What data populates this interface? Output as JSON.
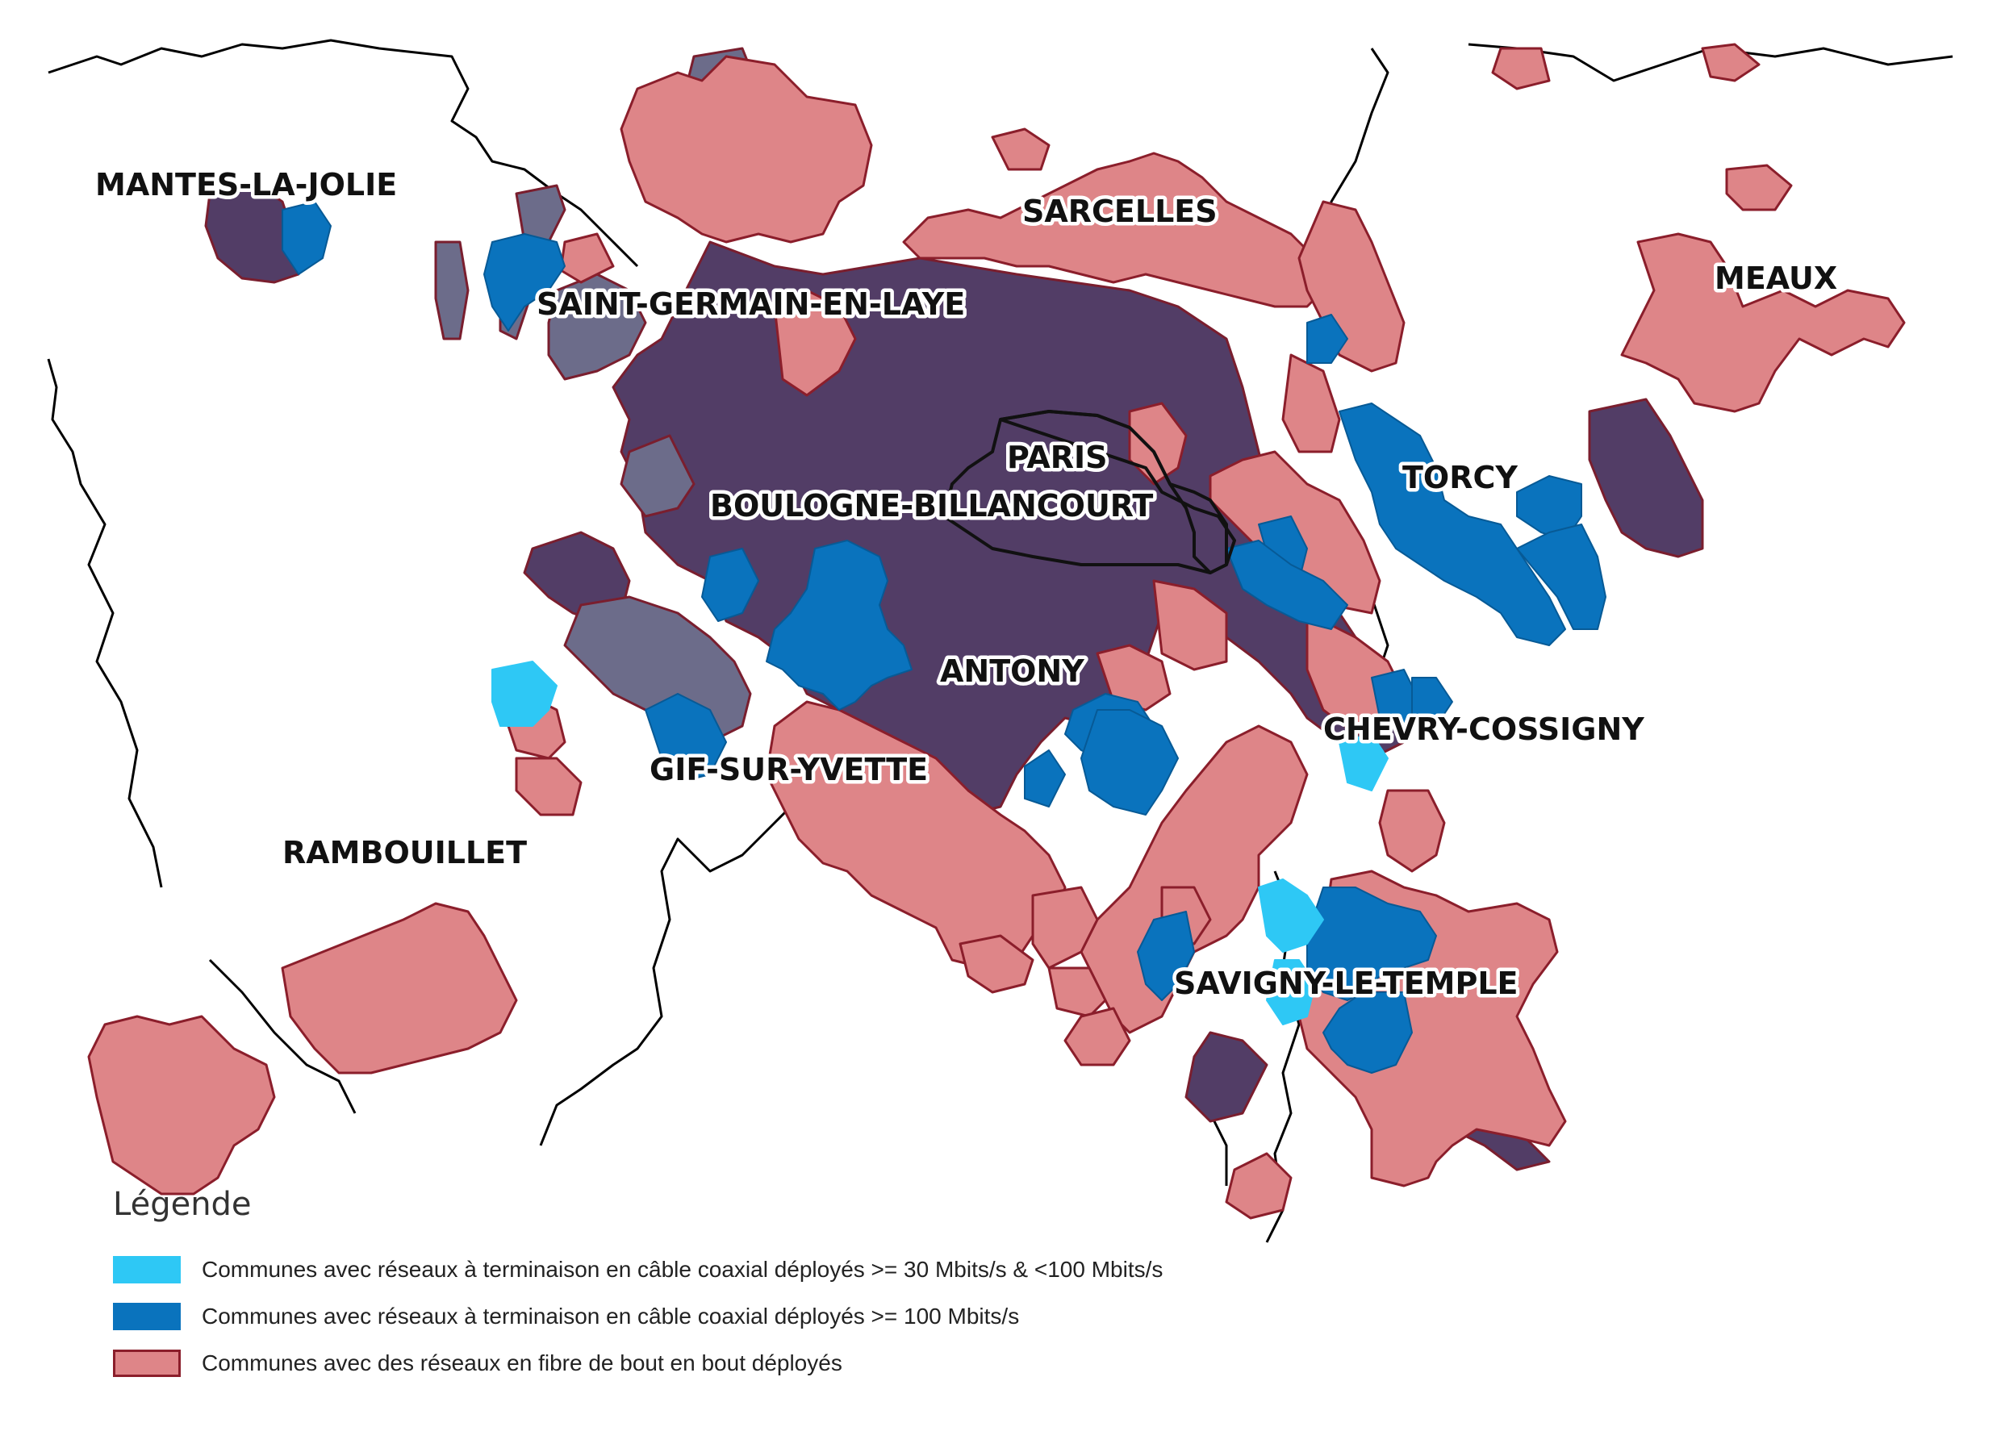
{
  "colors": {
    "coax_30_100": "#2ec8f5",
    "coax_100": "#0a73bd",
    "fibre": "#de8588",
    "fibre_border": "#8b1e2b",
    "overlap_dark": "#523d66",
    "overlap_grey": "#6c6c8a",
    "borders": "#000000"
  },
  "labels": [
    "MANTES-LA-JOLIE",
    "SARCELLES",
    "MEAUX",
    "SAINT-GERMAIN-EN-LAYE",
    "PARIS",
    "TORCY",
    "BOULOGNE-BILLANCOURT",
    "ANTONY",
    "CHEVRY-COSSIGNY",
    "GIF-SUR-YVETTE",
    "RAMBOUILLET",
    "SAVIGNY-LE-TEMPLE"
  ],
  "legend": {
    "title": "Légende",
    "items": [
      {
        "label": "Communes avec réseaux à terminaison en câble coaxial déployés >= 30 Mbits/s & <100 Mbits/s",
        "color": "#2ec8f5",
        "border": "#2ec8f5"
      },
      {
        "label": "Communes avec réseaux à terminaison en câble coaxial déployés >= 100 Mbits/s",
        "color": "#0a73bd",
        "border": "#0a73bd"
      },
      {
        "label": "Communes avec des réseaux en fibre de bout en bout déployés",
        "color": "#de8588",
        "border": "#8b1e2b"
      }
    ]
  }
}
